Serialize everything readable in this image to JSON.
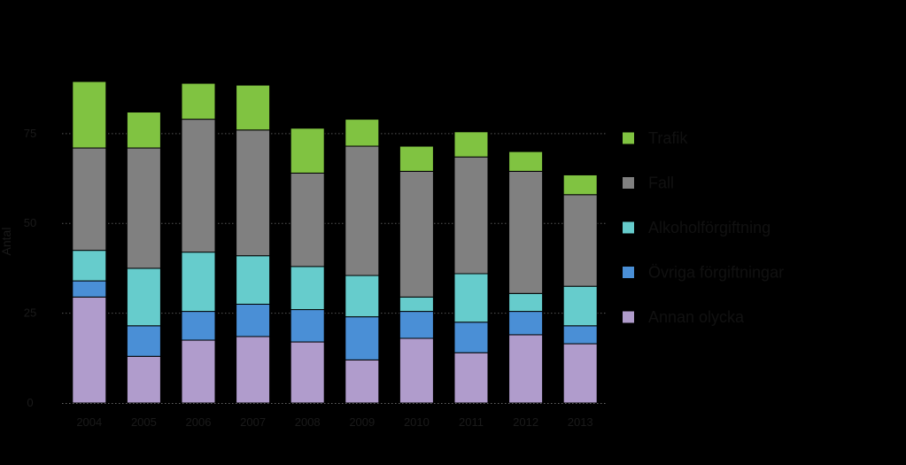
{
  "chart_data": {
    "type": "bar",
    "stacked": true,
    "title": "",
    "xlabel": "",
    "ylabel": "Antal",
    "ylim": [
      0,
      90
    ],
    "yticks": [
      0,
      25,
      50,
      75
    ],
    "ytick_labels": [
      "0",
      "25",
      "50",
      "75"
    ],
    "grid": true,
    "legend_position": "right",
    "categories": [
      "2004",
      "2005",
      "2006",
      "2007",
      "2008",
      "2009",
      "2010",
      "2011",
      "2012",
      "2013"
    ],
    "series": [
      {
        "name": "Annan olycka",
        "color": "#b09ccc",
        "values": [
          29.5,
          13,
          17.5,
          18.5,
          17,
          12,
          18,
          14,
          19,
          16.5
        ]
      },
      {
        "name": "Övriga förgiftningar",
        "color": "#4a8fd6",
        "values": [
          4.5,
          8.5,
          8,
          9,
          9,
          12,
          7.5,
          8.5,
          6.5,
          5
        ]
      },
      {
        "name": "Alkoholförgiftning",
        "color": "#66cccc",
        "values": [
          8.5,
          16,
          16.5,
          13.5,
          12,
          11.5,
          4,
          13.5,
          5,
          11
        ]
      },
      {
        "name": "Fall",
        "color": "#808080",
        "values": [
          28.5,
          33.5,
          37,
          35,
          26,
          36,
          35,
          32.5,
          34,
          25.5
        ]
      },
      {
        "name": "Trafik",
        "color": "#80c341",
        "values": [
          18.5,
          10,
          10,
          12.5,
          12.5,
          7.5,
          7,
          7,
          5.5,
          5.5
        ]
      }
    ]
  }
}
